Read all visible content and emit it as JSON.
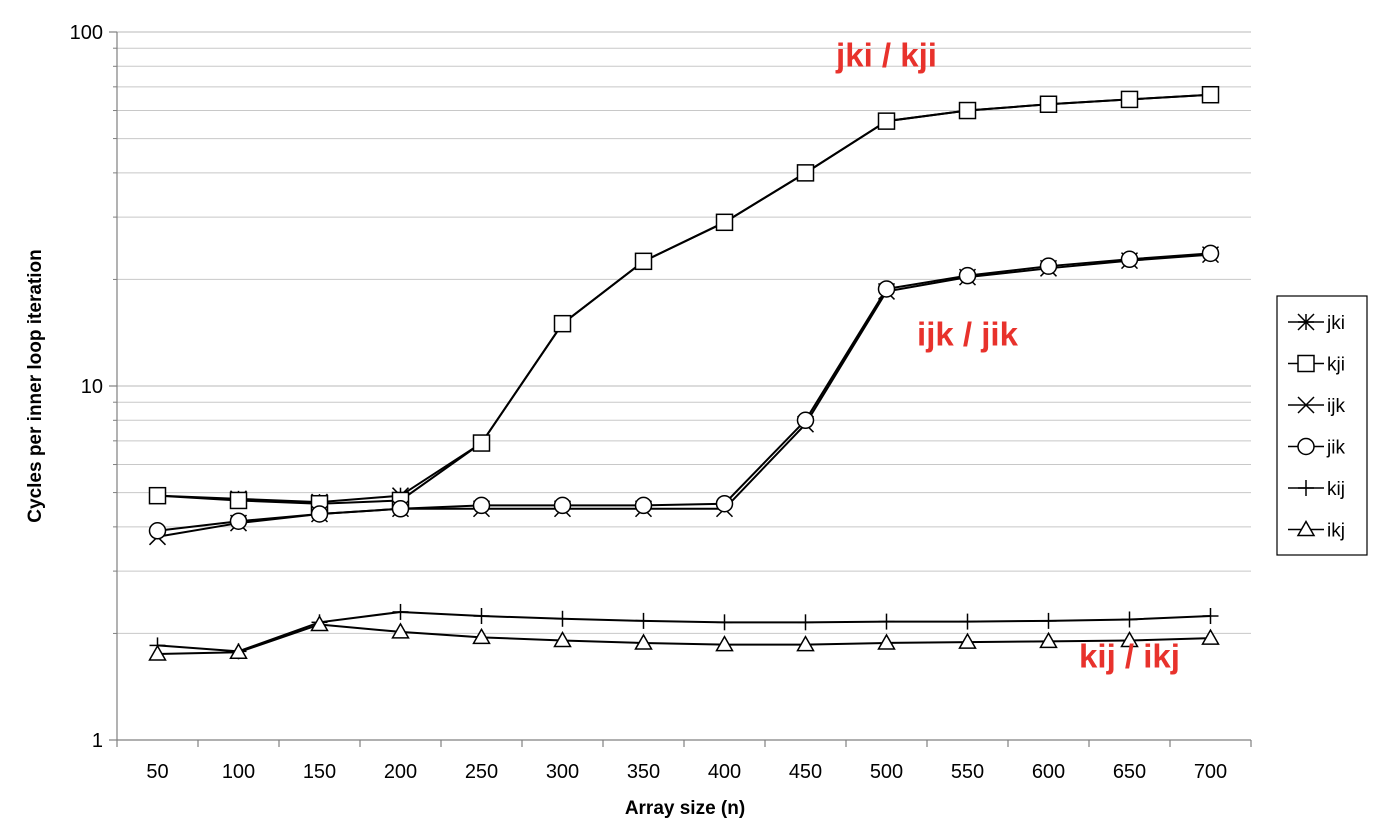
{
  "chart_data": {
    "type": "line",
    "title": "",
    "xlabel": "Array size (n)",
    "ylabel": "Cycles per inner loop iteration",
    "yscale": "log",
    "ylim": [
      1,
      100
    ],
    "grid": true,
    "legend_position": "right",
    "categories": [
      50,
      100,
      150,
      200,
      250,
      300,
      350,
      400,
      450,
      500,
      550,
      600,
      650,
      700
    ],
    "x_tick_labels": [
      "50",
      "100",
      "150",
      "200",
      "250",
      "300",
      "350",
      "400",
      "450",
      "500",
      "550",
      "600",
      "650",
      "700"
    ],
    "y_tick_labels": [
      "1",
      "10",
      "100"
    ],
    "series": [
      {
        "name": "jki",
        "marker": "asterisk",
        "values": [
          4.9,
          4.8,
          4.7,
          4.9,
          6.9,
          15,
          22.5,
          29,
          40,
          56,
          60,
          62.5,
          64.5,
          66.5
        ]
      },
      {
        "name": "kji",
        "marker": "square",
        "values": [
          4.9,
          4.75,
          4.65,
          4.75,
          6.9,
          15,
          22.5,
          29,
          40,
          56,
          60,
          62.5,
          64.5,
          66.5
        ]
      },
      {
        "name": "ijk",
        "marker": "x",
        "values": [
          3.75,
          4.1,
          4.35,
          4.5,
          4.5,
          4.5,
          4.5,
          4.5,
          7.8,
          18.5,
          20.3,
          21.5,
          22.6,
          23.5
        ]
      },
      {
        "name": "jik",
        "marker": "circle",
        "values": [
          3.9,
          4.15,
          4.35,
          4.5,
          4.6,
          4.6,
          4.6,
          4.65,
          8.0,
          18.8,
          20.5,
          21.8,
          22.8,
          23.7
        ]
      },
      {
        "name": "kij",
        "marker": "plus",
        "values": [
          1.85,
          1.78,
          2.15,
          2.3,
          2.24,
          2.2,
          2.17,
          2.15,
          2.15,
          2.16,
          2.16,
          2.17,
          2.19,
          2.24
        ]
      },
      {
        "name": "ikj",
        "marker": "triangle",
        "values": [
          1.75,
          1.77,
          2.12,
          2.02,
          1.95,
          1.91,
          1.88,
          1.86,
          1.86,
          1.88,
          1.89,
          1.9,
          1.91,
          1.94
        ]
      }
    ],
    "annotations": [
      {
        "text": "jki / kji",
        "color": "#e8322c",
        "x": 500,
        "y": 80
      },
      {
        "text": "ijk / jik",
        "color": "#e8322c",
        "x": 550,
        "y": 13
      },
      {
        "text": "kij / ikj",
        "color": "#e8322c",
        "x": 650,
        "y": 1.6
      }
    ]
  }
}
